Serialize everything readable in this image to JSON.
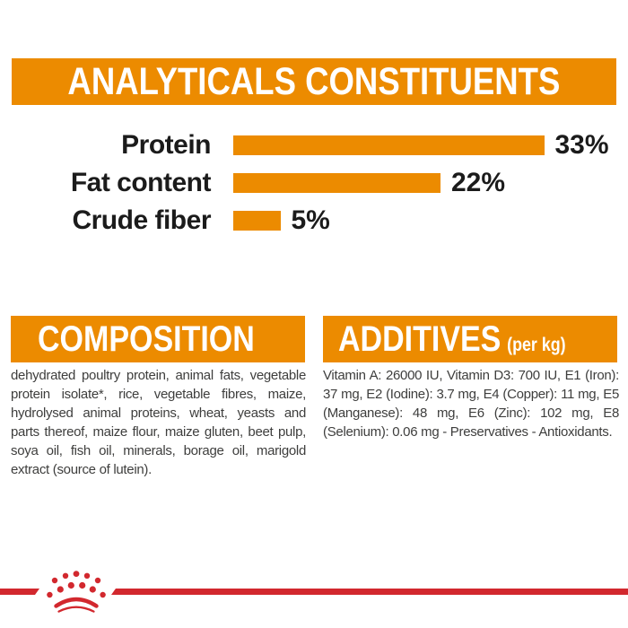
{
  "colors": {
    "orange": "#EC8B00",
    "red": "#D2282E",
    "body_text": "#3E3E3D",
    "label_text": "#1B1B1B"
  },
  "header": {
    "title": "ANALYTICALS CONSTITUENTS"
  },
  "chart_data": {
    "type": "bar",
    "orientation": "horizontal",
    "title": "ANALYTICALS CONSTITUENTS",
    "categories": [
      "Protein",
      "Fat content",
      "Crude fiber"
    ],
    "values": [
      33,
      22,
      5
    ],
    "value_labels": [
      "33%",
      "22%",
      "5%"
    ],
    "unit": "%",
    "bar_color": "#EC8B00",
    "xlim": [
      0,
      35
    ],
    "grid": false,
    "axes_shown": false,
    "value_label_position": "right-of-bar"
  },
  "composition": {
    "title": "COMPOSITION",
    "body": "dehydrated poultry protein, animal fats, vegetable protein isolate*, rice, vegetable fibres, maize, hydrolysed animal proteins, wheat, yeasts and parts thereof, maize flour, maize gluten, beet pulp, soya oil, fish oil, minerals, borage oil, marigold extract (source of lutein)."
  },
  "additives": {
    "title": "ADDITIVES",
    "title_suffix": "(per kg)",
    "body": "Vitamin A: 26000 IU, Vitamin D3: 700 IU, E1 (Iron): 37 mg, E2 (Iodine): 3.7 mg, E4 (Copper): 11 mg, E5 (Manganese): 48 mg, E6 (Zinc): 102 mg, E8 (Selenium): 0.06 mg - Preservatives - Antioxidants."
  },
  "footer": {
    "logo": "royal-canin-crown"
  }
}
